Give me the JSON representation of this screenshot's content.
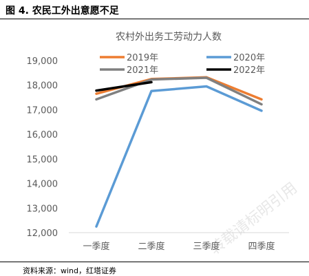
{
  "figure_title": "图 4. 农民工外出意愿不足",
  "source": "资料来源：wind，红塔证券",
  "watermark": "转载请标明引用",
  "chart_data": {
    "type": "line",
    "title": "农村外出务工劳动力人数",
    "xlabel": "",
    "ylabel": "",
    "categories": [
      "一季度",
      "二季度",
      "三季度",
      "四季度"
    ],
    "ylim": [
      12000,
      19000
    ],
    "yticks": [
      12000,
      13000,
      14000,
      15000,
      16000,
      17000,
      18000,
      19000
    ],
    "ytick_labels": [
      "12,000",
      "13,000",
      "14,000",
      "15,000",
      "16,000",
      "17,000",
      "18,000",
      "19,000"
    ],
    "grid": false,
    "legend_position": "top",
    "series": [
      {
        "name": "2019年",
        "color": "#ED7D31",
        "values": [
          17650,
          18250,
          18320,
          17420
        ]
      },
      {
        "name": "2020年",
        "color": "#5B9BD5",
        "values": [
          12250,
          17760,
          17950,
          16960
        ]
      },
      {
        "name": "2021年",
        "color": "#808080",
        "values": [
          17420,
          18230,
          18300,
          17220
        ]
      },
      {
        "name": "2022年",
        "color": "#000000",
        "values": [
          17780,
          18120,
          null,
          null
        ]
      }
    ]
  }
}
